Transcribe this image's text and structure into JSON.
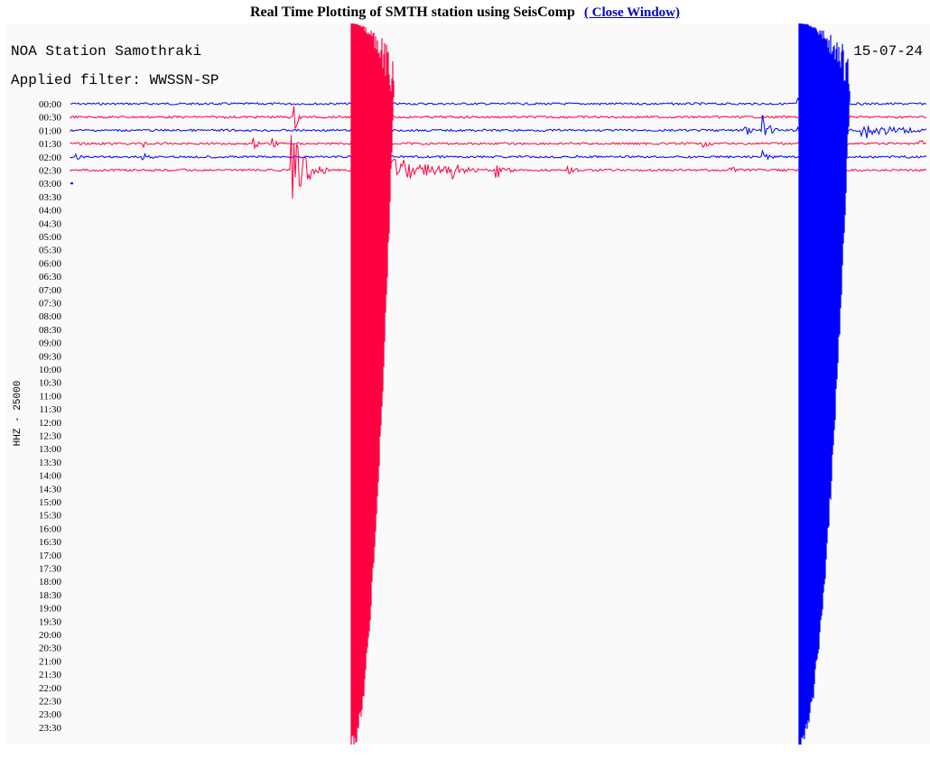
{
  "header": {
    "title": "Real Time Plotting of SMTH station using SeisComp",
    "link": "( Close Window)"
  },
  "plot": {
    "station": "NOA Station Samothraki",
    "filter": "Applied filter: WWSSN-SP",
    "date": "15-07-24",
    "axis_label": "HHZ - 25000",
    "rows": [
      "00:00",
      "00:30",
      "01:00",
      "01:30",
      "02:00",
      "02:30",
      "03:00",
      "03:30",
      "04:00",
      "04:30",
      "05:00",
      "05:30",
      "06:00",
      "06:30",
      "07:00",
      "07:30",
      "08:00",
      "08:30",
      "09:00",
      "09:30",
      "10:00",
      "10:30",
      "11:00",
      "11:30",
      "12:00",
      "12:30",
      "13:00",
      "13:30",
      "14:00",
      "14:30",
      "15:00",
      "15:30",
      "16:00",
      "16:30",
      "17:00",
      "17:30",
      "18:00",
      "18:30",
      "19:00",
      "19:30",
      "20:00",
      "20:30",
      "21:00",
      "21:30",
      "22:00",
      "22:30",
      "23:00",
      "23:30"
    ]
  }
}
